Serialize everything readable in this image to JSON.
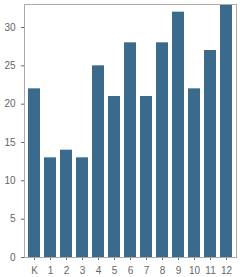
{
  "chart_data": {
    "type": "bar",
    "categories": [
      "K",
      "1",
      "2",
      "3",
      "4",
      "5",
      "6",
      "7",
      "8",
      "9",
      "10",
      "11",
      "12"
    ],
    "values": [
      22,
      13,
      14,
      13,
      25,
      21,
      28,
      21,
      28,
      32,
      22,
      27,
      33
    ],
    "color": "#3a6b8d",
    "ylim": [
      0,
      33
    ],
    "yticks": [
      0,
      5,
      10,
      15,
      20,
      25,
      30
    ],
    "grid": false
  }
}
